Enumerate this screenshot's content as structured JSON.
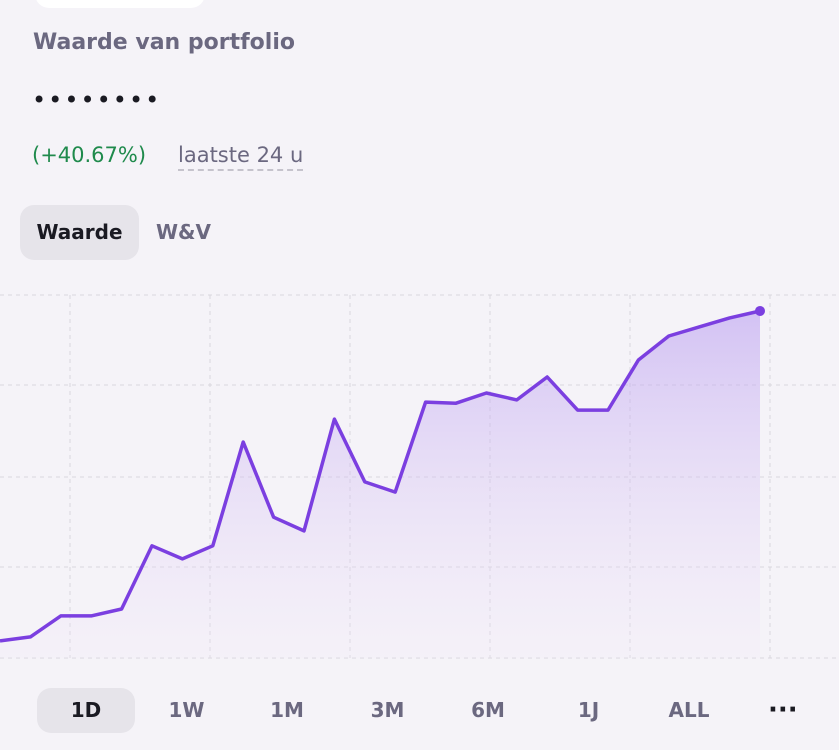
{
  "header": {
    "title": "Waarde van portfolio",
    "masked_value": "••••••••",
    "change": "(+40.67%)",
    "period": "laatste 24 u"
  },
  "tabs": [
    "Waarde",
    "W&V"
  ],
  "chart_data": {
    "type": "line",
    "color": "#7b3fe0",
    "values": [
      4.7,
      5.8,
      11.6,
      11.6,
      13.5,
      30.9,
      27.3,
      30.9,
      59.5,
      38.8,
      35.0,
      65.8,
      48.5,
      45.7,
      70.5,
      70.2,
      73.0,
      71.1,
      77.4,
      68.3,
      68.3,
      82.1,
      88.7,
      91.2,
      93.7,
      95.6
    ],
    "ylim": [
      0,
      100
    ]
  },
  "ranges": [
    "1D",
    "1W",
    "1M",
    "3M",
    "6M",
    "1J",
    "ALL"
  ],
  "more": "···"
}
